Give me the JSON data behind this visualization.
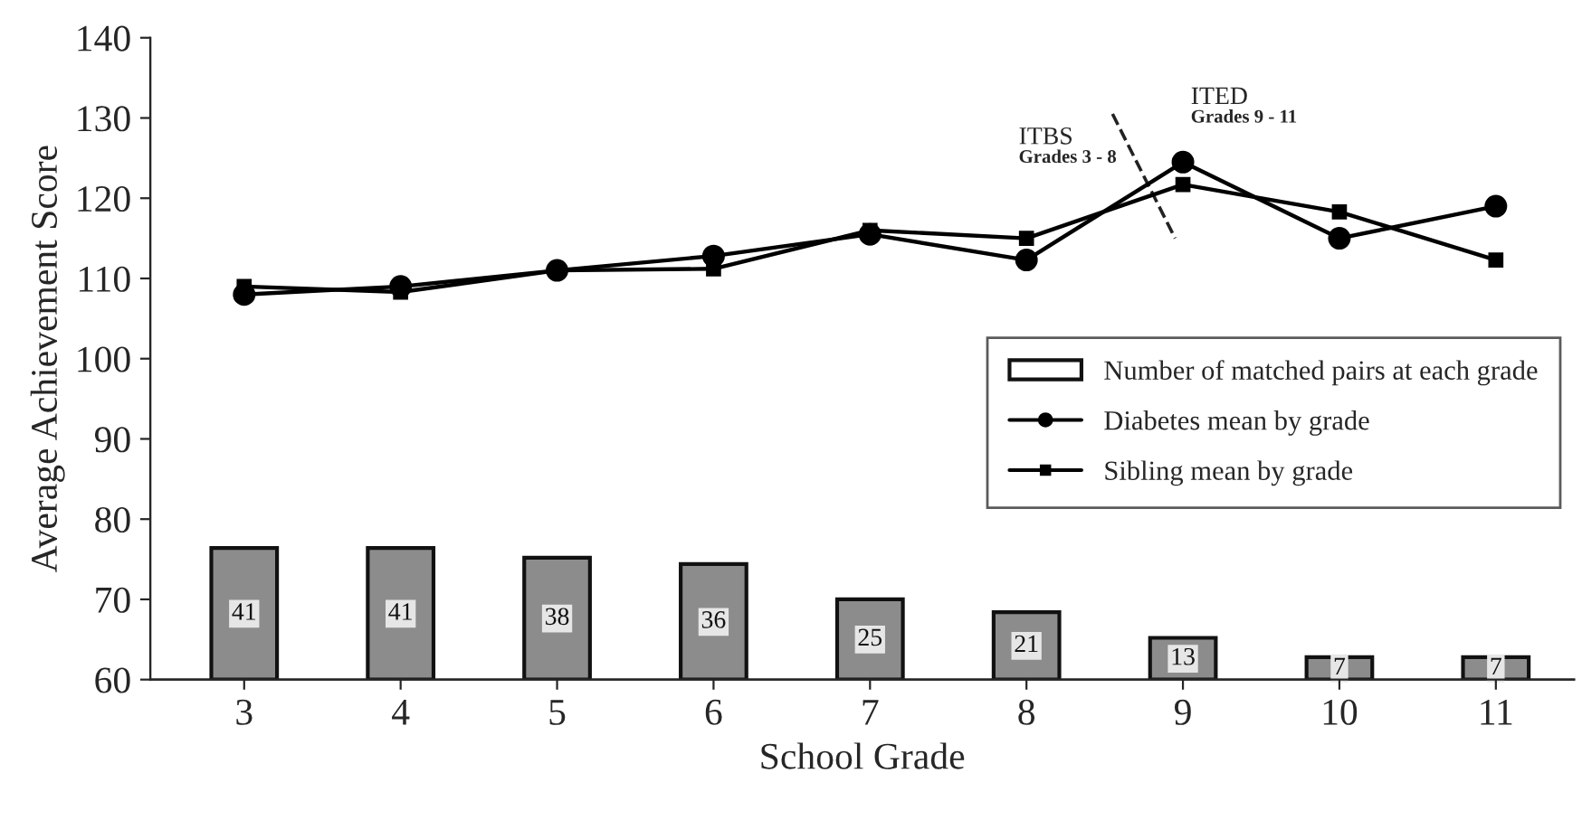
{
  "chart_data": {
    "type": "line",
    "xlabel": "School Grade",
    "ylabel": "Average Achievement Score",
    "categories": [
      "3",
      "4",
      "5",
      "6",
      "7",
      "8",
      "9",
      "10",
      "11"
    ],
    "series": [
      {
        "name": "Number of matched pairs at each grade",
        "type": "bar",
        "axis": "y2",
        "color": "#8c8c8c",
        "values": [
          41,
          41,
          38,
          36,
          25,
          21,
          13,
          7,
          7
        ],
        "value_labels": [
          "41",
          "41",
          "38",
          "36",
          "25",
          "21",
          "13",
          "7",
          "7"
        ]
      },
      {
        "name": "Diabetes mean by grade",
        "color": "#000000",
        "marker": "circle",
        "values": [
          108,
          109,
          111,
          112.8,
          115.5,
          112.3,
          124.5,
          115,
          119
        ]
      },
      {
        "name": "Sibling mean by grade",
        "color": "#000000",
        "marker": "square",
        "values": [
          109,
          108.3,
          111,
          111.2,
          116,
          115,
          121.7,
          118.3,
          112.3
        ]
      }
    ],
    "ylim": [
      60,
      140
    ],
    "yticks": [
      60,
      70,
      80,
      90,
      100,
      110,
      120,
      130,
      140
    ],
    "y2lim": [
      0,
      200
    ],
    "annotations": [
      "ITBS",
      "Grades 3 - 8",
      "ITED",
      "Grades 9 - 11"
    ],
    "grid": false,
    "legend": "right",
    "line_style": "solid"
  }
}
